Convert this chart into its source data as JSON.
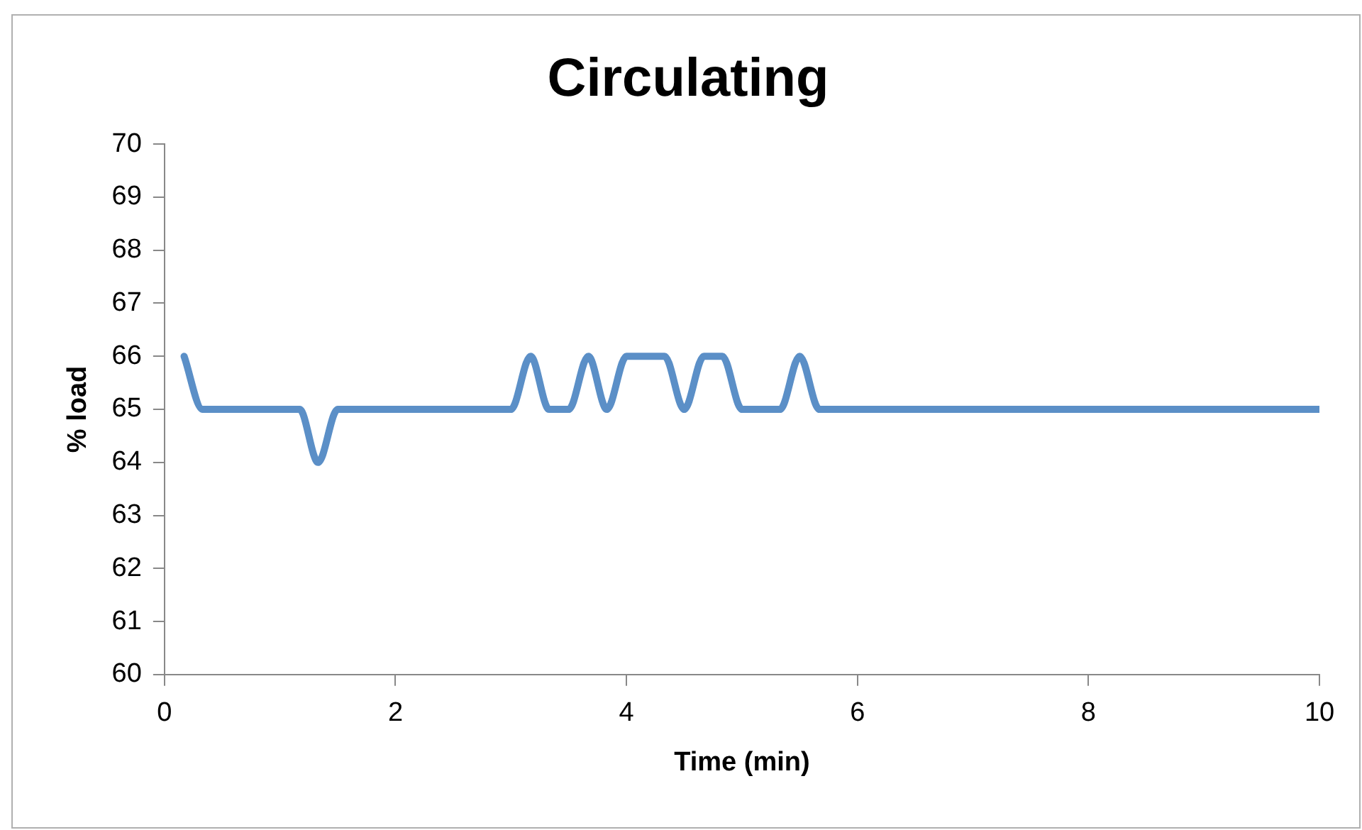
{
  "chart_data": {
    "type": "line",
    "title": "Circulating",
    "xlabel": "Time (min)",
    "ylabel": "% load",
    "series": [
      {
        "color": "#5b8fc7",
        "x": [
          0.17,
          0.33,
          0.5,
          0.67,
          0.83,
          1,
          1.17,
          1.33,
          1.5,
          1.67,
          2,
          2.5,
          2.83,
          3,
          3.17,
          3.33,
          3.5,
          3.67,
          3.83,
          4,
          4.17,
          4.33,
          4.5,
          4.67,
          4.83,
          5,
          5.17,
          5.33,
          5.5,
          5.67,
          5.83,
          6,
          8,
          10
        ],
        "values": [
          66,
          65,
          65,
          65,
          65,
          65,
          65,
          64,
          65,
          65,
          65,
          65,
          65,
          65,
          66,
          65,
          65,
          66,
          65,
          66,
          66,
          66,
          65,
          66,
          66,
          65,
          65,
          65,
          66,
          65,
          65,
          65,
          65,
          65
        ]
      }
    ],
    "xlim": [
      0,
      10
    ],
    "xticks": [
      0,
      2,
      4,
      6,
      8,
      10
    ],
    "ylim": [
      60,
      70
    ],
    "yticks": [
      60,
      61,
      62,
      63,
      64,
      65,
      66,
      67,
      68,
      69,
      70
    ],
    "grid": false,
    "legend": false,
    "marker": "none",
    "line_style": "solid"
  }
}
